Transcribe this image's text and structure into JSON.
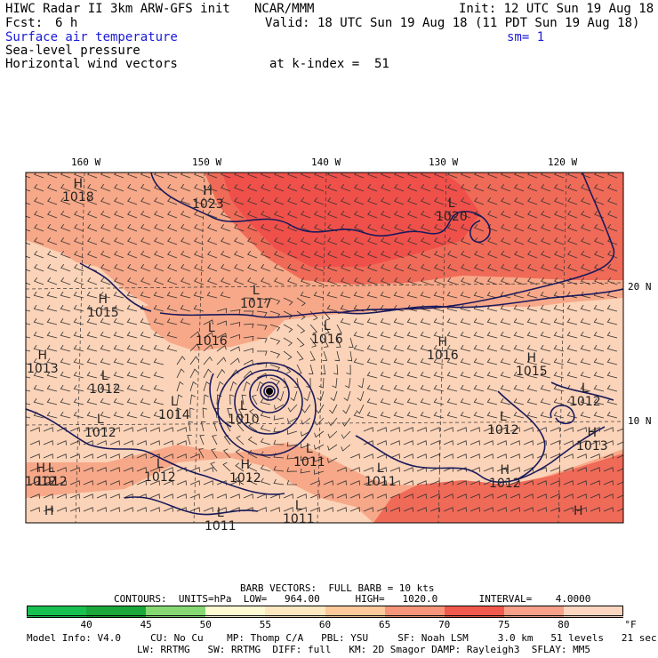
{
  "header": {
    "title": "HIWC Radar II 3km ARW-GFS init",
    "org": "NCAR/MMM",
    "init": "Init: 12 UTC Sun 19 Aug 18",
    "fcst_label": "Fcst:",
    "fcst_value": "6 h",
    "valid": "Valid: 18 UTC Sun 19 Aug 18 (11 PDT Sun 19 Aug 18)",
    "field1": "Surface air temperature",
    "sm": "sm= 1",
    "field2": "Sea-level pressure",
    "field3": "Horizontal wind vectors",
    "kindex": "at k-index =  51"
  },
  "map": {
    "lon_labels": [
      "160 W",
      "150 W",
      "140 W",
      "130 W",
      "120 W"
    ],
    "lat_labels": [
      "20 N",
      "10 N"
    ],
    "pressure_labels": [
      {
        "kind": "H",
        "value": "1018"
      },
      {
        "kind": "H",
        "value": "1023"
      },
      {
        "kind": "L",
        "value": "1020"
      },
      {
        "kind": "L",
        "value": "1017"
      },
      {
        "kind": "H",
        "value": "1015"
      },
      {
        "kind": "L",
        "value": "1016"
      },
      {
        "kind": "L",
        "value": "1016"
      },
      {
        "kind": "H",
        "value": "1016"
      },
      {
        "kind": "H",
        "value": "1015"
      },
      {
        "kind": "H",
        "value": "1013"
      },
      {
        "kind": "L",
        "value": "1012"
      },
      {
        "kind": "L",
        "value": "1012"
      },
      {
        "kind": "L",
        "value": "1014"
      },
      {
        "kind": "L",
        "value": "1010"
      },
      {
        "kind": "L",
        "value": "1012"
      },
      {
        "kind": "H",
        "value": "1012"
      },
      {
        "kind": "L",
        "value": "1012"
      },
      {
        "kind": "H",
        "value": "1012"
      },
      {
        "kind": "L",
        "value": "1011"
      },
      {
        "kind": "L",
        "value": "1012"
      },
      {
        "kind": "L",
        "value": "1011"
      },
      {
        "kind": "L",
        "value": "1011"
      },
      {
        "kind": "L",
        "value": "1011"
      },
      {
        "kind": "H",
        "value": "1013"
      },
      {
        "kind": "H",
        "value": "1012"
      },
      {
        "kind": "L",
        "value": "1012"
      },
      {
        "kind": "H",
        "value": ""
      },
      {
        "kind": "H",
        "value": ""
      }
    ],
    "region_colors": {
      "t80": "#f7a888",
      "t75": "#f06a58",
      "t70": "#f0504a",
      "t65": "#fbd3b8"
    }
  },
  "footer": {
    "barb_line": "BARB VECTORS:  FULL BARB = 10 kts",
    "contours_line": "CONTOURS:  UNITS=hPa  LOW=   964.00      HIGH=   1020.0       INTERVAL=    4.0000",
    "colorbar": {
      "colors": [
        "#18c050",
        "#1aa83a",
        "#86d872",
        "#fefad2",
        "#fde8c0",
        "#fbc99a",
        "#f6957a",
        "#f05a4c",
        "#f7a08a",
        "#fcd6c0"
      ],
      "ticks": [
        "40",
        "45",
        "50",
        "55",
        "60",
        "65",
        "70",
        "75",
        "80"
      ],
      "unit": "°F"
    },
    "model_line1": "Model Info: V4.0     CU: No Cu    MP: Thomp C/A   PBL: YSU     SF: Noah LSM     3.0 km   51 levels   21 sec",
    "model_line2": "LW: RRTMG   SW: RRTMG  DIFF: full   KM: 2D Smagor DAMP: Rayleigh3  SFLAY: MM5"
  }
}
